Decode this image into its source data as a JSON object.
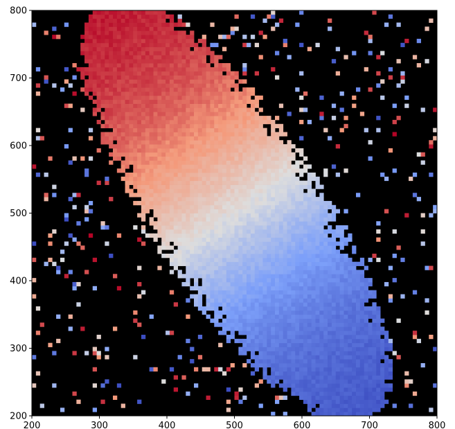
{
  "chart_data": {
    "type": "heatmap",
    "title": "",
    "xlabel": "",
    "ylabel": "",
    "xlim": [
      200,
      800
    ],
    "ylim": [
      200,
      800
    ],
    "x_ticks": [
      200,
      300,
      400,
      500,
      600,
      700,
      800
    ],
    "y_ticks": [
      200,
      300,
      400,
      500,
      600,
      700,
      800
    ],
    "x_tick_labels": [
      "200",
      "300",
      "400",
      "500",
      "600",
      "700",
      "800"
    ],
    "y_tick_labels": [
      "200",
      "300",
      "400",
      "500",
      "600",
      "700",
      "800"
    ],
    "grid": false,
    "legend": "none",
    "colormap": "coolwarm",
    "background_color": "#000000",
    "description_colors": {
      "receding": "#e8785f",
      "approaching": "#6e8ff0",
      "systemic": "#dcdcdc"
    },
    "features": {
      "galaxy_center": [
        500,
        500
      ],
      "major_axis_from": [
        290,
        790
      ],
      "major_axis_to": [
        670,
        215
      ],
      "red_side_peak_center": [
        450,
        600
      ],
      "blue_side_peak_center": [
        570,
        420
      ]
    }
  }
}
